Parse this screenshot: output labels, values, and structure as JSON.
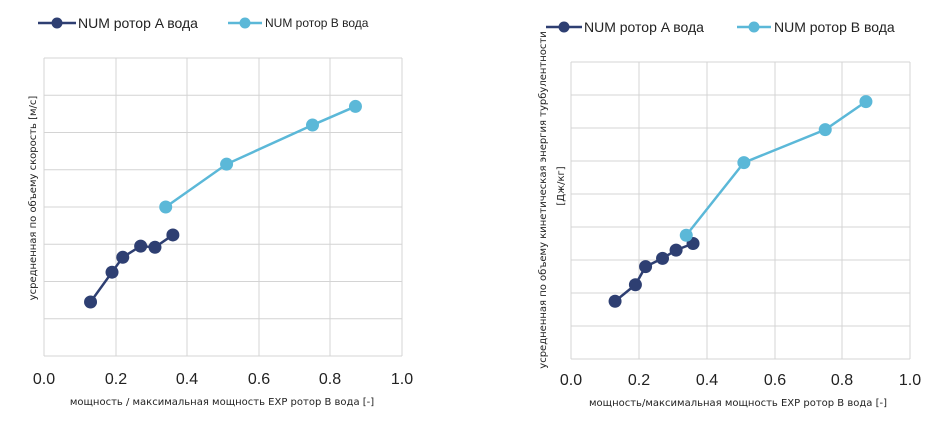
{
  "chart_data": [
    {
      "type": "scatter",
      "title": "",
      "xlabel": "мощность / максимальная мощность EXP ротор B вода [-]",
      "ylabel": "усредненная по объему скорость [м/с]",
      "xlim": [
        0,
        1
      ],
      "xticks": [
        "0.0",
        "0.2",
        "0.4",
        "0.6",
        "0.8",
        "1.0"
      ],
      "grid": true,
      "legend": "top",
      "series": [
        {
          "name": "NUM ротор A вода",
          "color": "#2e3f72",
          "points": [
            [
              0.13,
              1.45
            ],
            [
              0.19,
              2.25
            ],
            [
              0.22,
              2.65
            ],
            [
              0.27,
              2.95
            ],
            [
              0.31,
              2.92
            ],
            [
              0.36,
              3.25
            ]
          ]
        },
        {
          "name": "NUM ротор B вода",
          "color": "#5bb8d8",
          "points": [
            [
              0.34,
              4.0
            ],
            [
              0.51,
              5.15
            ],
            [
              0.75,
              6.2
            ],
            [
              0.87,
              6.7
            ]
          ]
        }
      ]
    },
    {
      "type": "scatter",
      "title": "",
      "xlabel": "мощность/максимальная мощность EXP ротор B вода [-]",
      "ylabel": "усредненная по объему кинетическая энергия турбулентности [Дж/кг]",
      "xlim": [
        0,
        1
      ],
      "xticks": [
        "0.0",
        "0.2",
        "0.4",
        "0.6",
        "0.8",
        "1.0"
      ],
      "grid": true,
      "legend": "top",
      "series": [
        {
          "name": "NUM ротор A вода",
          "color": "#2e3f72",
          "points": [
            [
              0.13,
              1.75
            ],
            [
              0.19,
              2.25
            ],
            [
              0.22,
              2.8
            ],
            [
              0.27,
              3.05
            ],
            [
              0.31,
              3.3
            ],
            [
              0.36,
              3.5
            ]
          ]
        },
        {
          "name": "NUM ротор B вода",
          "color": "#5bb8d8",
          "points": [
            [
              0.34,
              3.75
            ],
            [
              0.51,
              5.95
            ],
            [
              0.75,
              6.95
            ],
            [
              0.87,
              7.8
            ]
          ]
        }
      ]
    }
  ]
}
